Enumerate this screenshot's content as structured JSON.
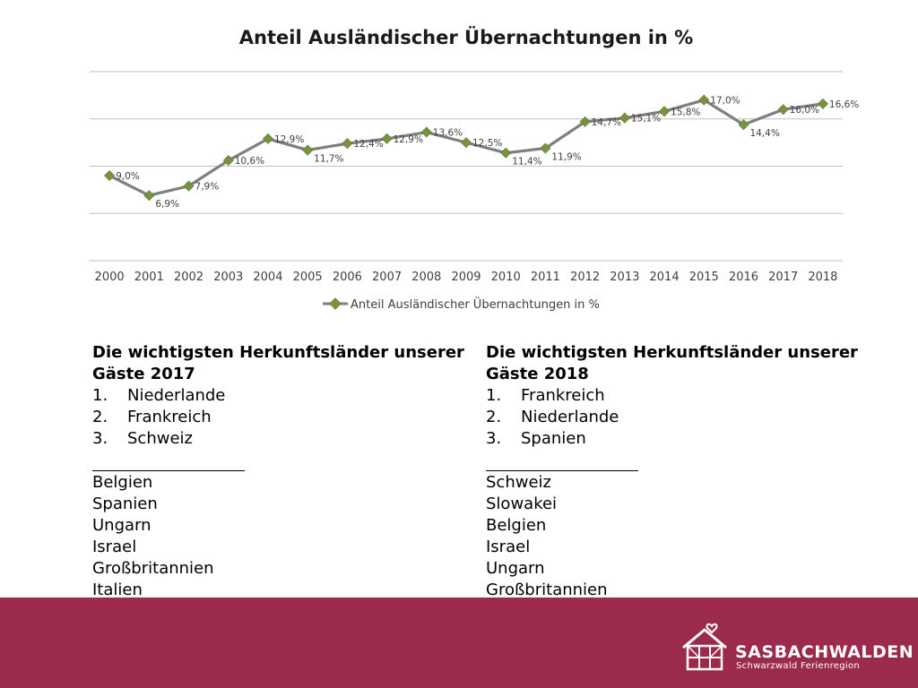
{
  "chart_data": {
    "type": "line",
    "title": "Anteil Ausländischer Übernachtungen in %",
    "categories": [
      "2000",
      "2001",
      "2002",
      "2003",
      "2004",
      "2005",
      "2006",
      "2007",
      "2008",
      "2009",
      "2010",
      "2011",
      "2012",
      "2013",
      "2014",
      "2015",
      "2016",
      "2017",
      "2018"
    ],
    "series": [
      {
        "name": "Anteil Ausländischer Übernachtungen in %",
        "values": [
          9.0,
          6.9,
          7.9,
          10.6,
          12.9,
          11.7,
          12.4,
          12.9,
          13.6,
          12.5,
          11.4,
          11.9,
          14.7,
          15.1,
          15.8,
          17.0,
          14.4,
          16.0,
          16.6
        ],
        "labels": [
          "9,0%",
          "6,9%",
          "7,9%",
          "10,6%",
          "12,9%",
          "11,7%",
          "12,4%",
          "12,9%",
          "13,6%",
          "12,5%",
          "11,4%",
          "11,9%",
          "14,7%",
          "15,1%",
          "15,8%",
          "17,0%",
          "14,4%",
          "16,0%",
          "16,6%"
        ]
      }
    ],
    "ylim": [
      0,
      20
    ],
    "grid": true,
    "legend": "bottom",
    "colors": {
      "line": "#7f7f7f",
      "marker": "#77933c",
      "grid": "#bfbfbf"
    }
  },
  "lists": [
    {
      "title": "Die wichtigsten Herkunftsländer unserer\nGäste 2017",
      "ranked": [
        {
          "num": "1.",
          "name": "Niederlande"
        },
        {
          "num": "2.",
          "name": "Frankreich"
        },
        {
          "num": "3.",
          "name": "Schweiz"
        }
      ],
      "others": [
        "Belgien",
        "Spanien",
        "Ungarn",
        "Israel",
        "Großbritannien",
        "Italien"
      ]
    },
    {
      "title": "Die wichtigsten Herkunftsländer unserer\nGäste 2018",
      "ranked": [
        {
          "num": "1.",
          "name": "Frankreich"
        },
        {
          "num": "2.",
          "name": "Niederlande"
        },
        {
          "num": "3.",
          "name": "Spanien"
        }
      ],
      "others": [
        "Schweiz",
        "Slowakei",
        "Belgien",
        "Israel",
        "Ungarn",
        "Großbritannien"
      ]
    }
  ],
  "footer": {
    "brand_name": "SASBACHWALDEN",
    "brand_tagline": "Schwarzwald Ferienregion",
    "logo_icon": "house-heart-icon",
    "background": "#9b2a4d"
  }
}
